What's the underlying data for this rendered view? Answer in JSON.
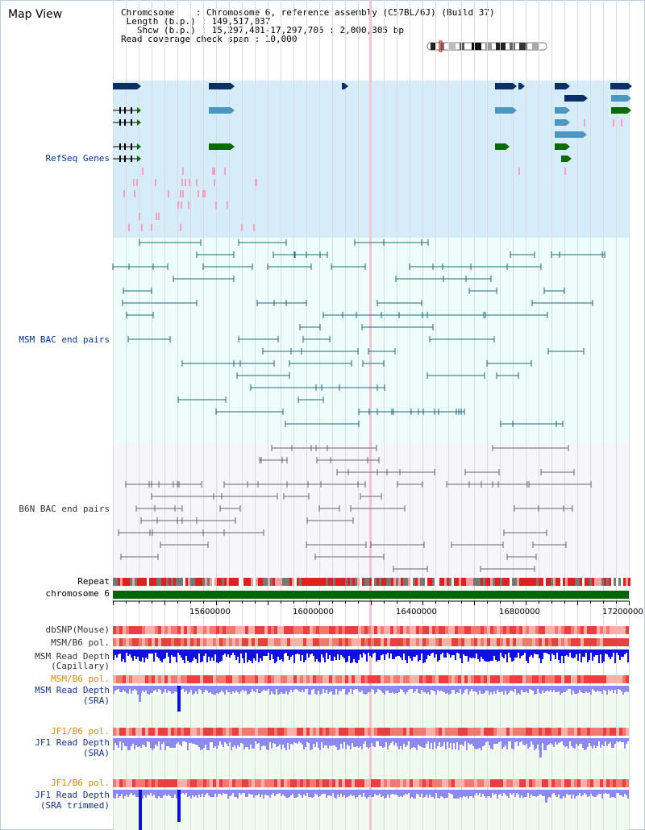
{
  "view": {
    "title": "Map View",
    "info_lines": [
      "Chromosome    : Chromosome 6, reference assembly (C57BL/6J) (Build 37)",
      " Length (b.p.) : 149,517,037",
      "   Show (b.p.) : 15,297,401-17,297,705 : 2,000,305 bp",
      "Read coverage check span : 10,000"
    ]
  },
  "tracks": {
    "refseq": "RefSeq Genes",
    "msm_bac": "MSM BAC end pairs",
    "b6n_bac": "B6N BAC end pairs",
    "repeat": "Repeat",
    "chromosome": "chromosome 6",
    "dbsnp": "dbSNP(Mouse)",
    "msm_b6_pol": "MSM/B6 pol.",
    "msm_depth_cap_1": "MSM Read Depth",
    "msm_depth_cap_2": "(Capillary)",
    "msm_b6_pol_2": "MSM/B6 pol.",
    "msm_depth_sra_1": "MSM Read Depth",
    "msm_depth_sra_2": "(SRA)",
    "jf1_b6_pol": "JF1/B6 pol.",
    "jf1_depth_sra_1": "JF1 Read Depth",
    "jf1_depth_sra_2": "(SRA)",
    "jf1_b6_pol_2": "JF1/B6 pol.",
    "jf1_depth_trim_1": "JF1 Read Depth",
    "jf1_depth_trim_2": "(SRA trimmed)"
  },
  "axis": {
    "ticks": [
      "15600000",
      "16000000",
      "16400000",
      "16800000",
      "17200000"
    ]
  },
  "colors": {
    "refseq_bg": "#d6ecf8",
    "bac_bg": "#eefcfc",
    "sra_bg": "#eefaee",
    "gene_navy": "#0a2f66",
    "gene_teal": "#4b97c0",
    "gene_green": "#0a6a0a",
    "msm_bac": "#1a6a7a",
    "b6n_bac": "#666666",
    "chromosome": "#006600"
  }
}
